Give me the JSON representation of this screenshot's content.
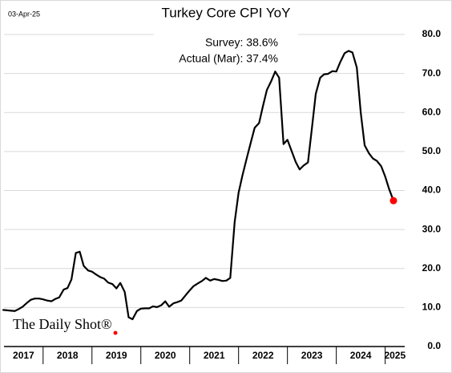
{
  "chart_data": {
    "type": "line",
    "title": "Turkey Core CPI YoY",
    "date": "03-Apr-25",
    "annotations": [
      "Survey:  38.6%",
      "Actual (Mar):  37.4%"
    ],
    "source": "The Daily Shot®",
    "x": [
      2017.17,
      2017.25,
      2017.33,
      2017.42,
      2017.5,
      2017.58,
      2017.67,
      2017.75,
      2017.83,
      2017.92,
      2018,
      2018.08,
      2018.17,
      2018.25,
      2018.33,
      2018.42,
      2018.5,
      2018.58,
      2018.67,
      2018.75,
      2018.83,
      2018.92,
      2019,
      2019.08,
      2019.17,
      2019.25,
      2019.33,
      2019.42,
      2019.5,
      2019.58,
      2019.67,
      2019.75,
      2019.83,
      2019.92,
      2020,
      2020.08,
      2020.17,
      2020.25,
      2020.33,
      2020.42,
      2020.5,
      2020.58,
      2020.67,
      2020.75,
      2020.83,
      2020.92,
      2021,
      2021.08,
      2021.17,
      2021.25,
      2021.33,
      2021.42,
      2021.5,
      2021.58,
      2021.67,
      2021.75,
      2021.83,
      2021.92,
      2022,
      2022.08,
      2022.17,
      2022.25,
      2022.33,
      2022.42,
      2022.5,
      2022.58,
      2022.67,
      2022.75,
      2022.83,
      2022.92,
      2023,
      2023.08,
      2023.17,
      2023.25,
      2023.33,
      2023.42,
      2023.5,
      2023.58,
      2023.67,
      2023.75,
      2023.83,
      2023.92,
      2024,
      2024.08,
      2024.17,
      2024.25,
      2024.33,
      2024.42,
      2024.5,
      2024.58,
      2024.67,
      2024.75,
      2024.83,
      2024.92,
      2025,
      2025.08,
      2025.17
    ],
    "series": [
      {
        "color": "#000000",
        "last_point_color": "#ff0000",
        "values": [
          9.4,
          9.3,
          9.2,
          9.1,
          9.6,
          10.2,
          11.2,
          12.0,
          12.3,
          12.3,
          12.1,
          11.8,
          11.6,
          12.2,
          12.6,
          14.6,
          15.0,
          17.2,
          24.0,
          24.3,
          20.7,
          19.5,
          19.2,
          18.5,
          17.8,
          17.4,
          16.4,
          16.0,
          14.9,
          16.3,
          14.0,
          7.5,
          7.0,
          9.1,
          9.7,
          9.8,
          9.8,
          10.3,
          10.1,
          10.6,
          11.6,
          10.2,
          11.1,
          11.4,
          11.8,
          13.2,
          14.4,
          15.5,
          16.2,
          16.8,
          17.6,
          16.9,
          17.3,
          17.1,
          16.8,
          16.9,
          17.6,
          31.9,
          39.4,
          43.9,
          48.4,
          52.3,
          56.1,
          57.3,
          61.7,
          65.8,
          68.1,
          70.5,
          68.9,
          51.9,
          53.0,
          50.3,
          47.3,
          45.4,
          46.4,
          47.2,
          55.9,
          64.8,
          68.9,
          69.8,
          69.9,
          70.6,
          70.5,
          72.9,
          75.2,
          75.8,
          75.4,
          71.5,
          60.0,
          51.6,
          49.5,
          48.2,
          47.6,
          46.2,
          43.6,
          40.4,
          37.4
        ]
      }
    ],
    "xlim": [
      2017.2,
      2025.4
    ],
    "xticks": [
      {
        "value": 2017,
        "label": "2017"
      },
      {
        "value": 2018,
        "label": "2018"
      },
      {
        "value": 2019,
        "label": "2019"
      },
      {
        "value": 2020,
        "label": "2020"
      },
      {
        "value": 2021,
        "label": "2021"
      },
      {
        "value": 2022,
        "label": "2022"
      },
      {
        "value": 2023,
        "label": "2023"
      },
      {
        "value": 2024,
        "label": "2024"
      },
      {
        "value": 2025,
        "label": "2025"
      }
    ],
    "ylim": [
      0,
      80
    ],
    "yticks": [
      {
        "value": 0,
        "label": "0.0"
      },
      {
        "value": 10,
        "label": "10.0"
      },
      {
        "value": 20,
        "label": "20.0"
      },
      {
        "value": 30,
        "label": "30.0"
      },
      {
        "value": 40,
        "label": "40.0"
      },
      {
        "value": 50,
        "label": "50.0"
      },
      {
        "value": 60,
        "label": "60.0"
      },
      {
        "value": 70,
        "label": "70.0"
      },
      {
        "value": 80,
        "label": "80.0"
      }
    ],
    "grid": true
  }
}
